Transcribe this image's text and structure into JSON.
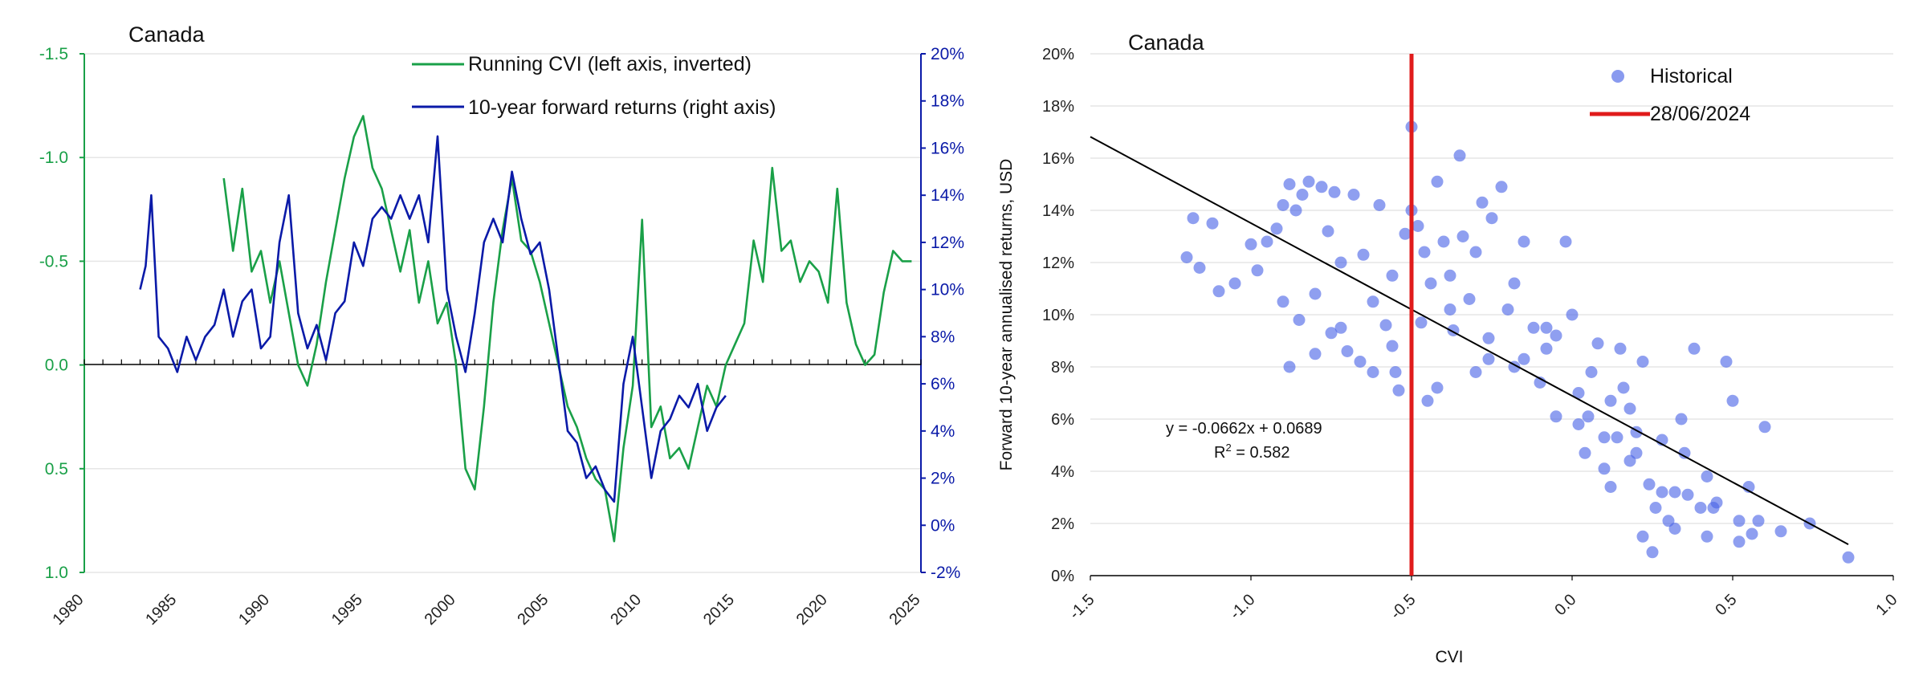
{
  "colors": {
    "cvi": "#1aa048",
    "returns": "#0a1aa8",
    "scatter": "#4a64e6",
    "marker": "#e01b1b",
    "trend": "#000000",
    "grid": "#e6e6e6"
  },
  "chart_data": [
    {
      "type": "line",
      "title": "Canada",
      "xlabel": "",
      "xlim": [
        1980,
        2025
      ],
      "x_ticks": [
        1980,
        1985,
        1990,
        1995,
        2000,
        2005,
        2010,
        2015,
        2020,
        2025
      ],
      "y_left": {
        "label": "",
        "inverted": true,
        "ylim": [
          -1.5,
          1.0
        ],
        "tick_values": [
          -1.5,
          -1.0,
          -0.5,
          0.0,
          0.5,
          1.0
        ],
        "tick_labels": [
          "-1.5",
          "-1.0",
          "-0.5",
          "0.0",
          "0.5",
          "1.0"
        ]
      },
      "y_right": {
        "label": "",
        "ylim": [
          -0.02,
          0.2
        ],
        "tick_values": [
          -0.02,
          0.0,
          0.02,
          0.04,
          0.06,
          0.08,
          0.1,
          0.12,
          0.14,
          0.16,
          0.18,
          0.2
        ],
        "tick_labels": [
          "-2%",
          "0%",
          "2%",
          "4%",
          "6%",
          "8%",
          "10%",
          "12%",
          "14%",
          "16%",
          "18%",
          "20%"
        ]
      },
      "series": [
        {
          "name": "Running CVI (left axis, inverted)",
          "axis": "left",
          "points": [
            [
              1987.5,
              -0.9
            ],
            [
              1988.0,
              -0.55
            ],
            [
              1988.5,
              -0.85
            ],
            [
              1989.0,
              -0.45
            ],
            [
              1989.5,
              -0.55
            ],
            [
              1990.0,
              -0.3
            ],
            [
              1990.5,
              -0.5
            ],
            [
              1991.0,
              -0.25
            ],
            [
              1991.5,
              0.0
            ],
            [
              1992.0,
              0.1
            ],
            [
              1992.5,
              -0.1
            ],
            [
              1993.0,
              -0.4
            ],
            [
              1993.5,
              -0.65
            ],
            [
              1994.0,
              -0.9
            ],
            [
              1994.5,
              -1.1
            ],
            [
              1995.0,
              -1.2
            ],
            [
              1995.5,
              -0.95
            ],
            [
              1996.0,
              -0.85
            ],
            [
              1996.5,
              -0.65
            ],
            [
              1997.0,
              -0.45
            ],
            [
              1997.5,
              -0.65
            ],
            [
              1998.0,
              -0.3
            ],
            [
              1998.5,
              -0.5
            ],
            [
              1999.0,
              -0.2
            ],
            [
              1999.5,
              -0.3
            ],
            [
              2000.0,
              0.0
            ],
            [
              2000.5,
              0.5
            ],
            [
              2001.0,
              0.6
            ],
            [
              2001.5,
              0.2
            ],
            [
              2002.0,
              -0.3
            ],
            [
              2002.5,
              -0.65
            ],
            [
              2003.0,
              -0.9
            ],
            [
              2003.5,
              -0.6
            ],
            [
              2004.0,
              -0.55
            ],
            [
              2004.5,
              -0.4
            ],
            [
              2005.0,
              -0.2
            ],
            [
              2005.5,
              0.0
            ],
            [
              2006.0,
              0.2
            ],
            [
              2006.5,
              0.3
            ],
            [
              2007.0,
              0.45
            ],
            [
              2007.5,
              0.55
            ],
            [
              2008.0,
              0.6
            ],
            [
              2008.5,
              0.85
            ],
            [
              2009.0,
              0.4
            ],
            [
              2009.5,
              0.1
            ],
            [
              2010.0,
              -0.7
            ],
            [
              2010.5,
              0.3
            ],
            [
              2011.0,
              0.2
            ],
            [
              2011.5,
              0.45
            ],
            [
              2012.0,
              0.4
            ],
            [
              2012.5,
              0.5
            ],
            [
              2013.0,
              0.3
            ],
            [
              2013.5,
              0.1
            ],
            [
              2014.0,
              0.2
            ],
            [
              2014.5,
              0.0
            ],
            [
              2015.0,
              -0.1
            ],
            [
              2015.5,
              -0.2
            ],
            [
              2016.0,
              -0.6
            ],
            [
              2016.5,
              -0.4
            ],
            [
              2017.0,
              -0.95
            ],
            [
              2017.5,
              -0.55
            ],
            [
              2018.0,
              -0.6
            ],
            [
              2018.5,
              -0.4
            ],
            [
              2019.0,
              -0.5
            ],
            [
              2019.5,
              -0.45
            ],
            [
              2020.0,
              -0.3
            ],
            [
              2020.5,
              -0.85
            ],
            [
              2021.0,
              -0.3
            ],
            [
              2021.5,
              -0.1
            ],
            [
              2022.0,
              0.0
            ],
            [
              2022.5,
              -0.05
            ],
            [
              2023.0,
              -0.35
            ],
            [
              2023.5,
              -0.55
            ],
            [
              2024.0,
              -0.5
            ],
            [
              2024.5,
              -0.5
            ]
          ]
        },
        {
          "name": "10-year forward returns (right axis)",
          "axis": "right",
          "points": [
            [
              1983.0,
              0.1
            ],
            [
              1983.3,
              0.11
            ],
            [
              1983.6,
              0.14
            ],
            [
              1984.0,
              0.08
            ],
            [
              1984.5,
              0.075
            ],
            [
              1985.0,
              0.065
            ],
            [
              1985.5,
              0.08
            ],
            [
              1986.0,
              0.07
            ],
            [
              1986.5,
              0.08
            ],
            [
              1987.0,
              0.085
            ],
            [
              1987.5,
              0.1
            ],
            [
              1988.0,
              0.08
            ],
            [
              1988.5,
              0.095
            ],
            [
              1989.0,
              0.1
            ],
            [
              1989.5,
              0.075
            ],
            [
              1990.0,
              0.08
            ],
            [
              1990.5,
              0.12
            ],
            [
              1991.0,
              0.14
            ],
            [
              1991.5,
              0.09
            ],
            [
              1992.0,
              0.075
            ],
            [
              1992.5,
              0.085
            ],
            [
              1993.0,
              0.07
            ],
            [
              1993.5,
              0.09
            ],
            [
              1994.0,
              0.095
            ],
            [
              1994.5,
              0.12
            ],
            [
              1995.0,
              0.11
            ],
            [
              1995.5,
              0.13
            ],
            [
              1996.0,
              0.135
            ],
            [
              1996.5,
              0.13
            ],
            [
              1997.0,
              0.14
            ],
            [
              1997.5,
              0.13
            ],
            [
              1998.0,
              0.14
            ],
            [
              1998.5,
              0.12
            ],
            [
              1999.0,
              0.165
            ],
            [
              1999.5,
              0.1
            ],
            [
              2000.0,
              0.08
            ],
            [
              2000.5,
              0.065
            ],
            [
              2001.0,
              0.09
            ],
            [
              2001.5,
              0.12
            ],
            [
              2002.0,
              0.13
            ],
            [
              2002.5,
              0.12
            ],
            [
              2003.0,
              0.15
            ],
            [
              2003.5,
              0.13
            ],
            [
              2004.0,
              0.115
            ],
            [
              2004.5,
              0.12
            ],
            [
              2005.0,
              0.1
            ],
            [
              2005.5,
              0.07
            ],
            [
              2006.0,
              0.04
            ],
            [
              2006.5,
              0.035
            ],
            [
              2007.0,
              0.02
            ],
            [
              2007.5,
              0.025
            ],
            [
              2008.0,
              0.015
            ],
            [
              2008.5,
              0.01
            ],
            [
              2009.0,
              0.06
            ],
            [
              2009.5,
              0.08
            ],
            [
              2010.0,
              0.05
            ],
            [
              2010.5,
              0.02
            ],
            [
              2011.0,
              0.04
            ],
            [
              2011.5,
              0.045
            ],
            [
              2012.0,
              0.055
            ],
            [
              2012.5,
              0.05
            ],
            [
              2013.0,
              0.06
            ],
            [
              2013.5,
              0.04
            ],
            [
              2014.0,
              0.05
            ],
            [
              2014.5,
              0.055
            ]
          ]
        }
      ]
    },
    {
      "type": "scatter",
      "title": "Canada",
      "xlabel": "CVI",
      "ylabel": "Forward 10-year annualised returns, USD",
      "xlim": [
        -1.5,
        1.0
      ],
      "ylim": [
        0.0,
        0.2
      ],
      "x_ticks": [
        -1.5,
        -1.0,
        -0.5,
        0.0,
        0.5,
        1.0
      ],
      "x_tick_labels": [
        "-1.5",
        "-1.0",
        "-0.5",
        "0.0",
        "0.5",
        "1.0"
      ],
      "y_ticks": [
        0.0,
        0.02,
        0.04,
        0.06,
        0.08,
        0.1,
        0.12,
        0.14,
        0.16,
        0.18,
        0.2
      ],
      "y_tick_labels": [
        "0%",
        "2%",
        "4%",
        "6%",
        "8%",
        "10%",
        "12%",
        "14%",
        "16%",
        "18%",
        "20%"
      ],
      "legend": [
        "Historical",
        "28/06/2024"
      ],
      "current_cvi": -0.5,
      "trendline": {
        "slope": -0.0662,
        "intercept": 0.0689,
        "x_range": [
          -1.5,
          0.86
        ],
        "equation": "y = -0.0662x + 0.0689",
        "r2_prefix": "R",
        "r2_sup": "2",
        "r2_suffix": " = 0.582"
      },
      "points": [
        [
          -1.2,
          0.122
        ],
        [
          -1.18,
          0.137
        ],
        [
          -1.16,
          0.118
        ],
        [
          -1.12,
          0.135
        ],
        [
          -1.1,
          0.109
        ],
        [
          -1.05,
          0.112
        ],
        [
          -1.0,
          0.127
        ],
        [
          -0.98,
          0.117
        ],
        [
          -0.95,
          0.128
        ],
        [
          -0.92,
          0.133
        ],
        [
          -0.9,
          0.142
        ],
        [
          -0.9,
          0.105
        ],
        [
          -0.88,
          0.15
        ],
        [
          -0.86,
          0.14
        ],
        [
          -0.85,
          0.098
        ],
        [
          -0.84,
          0.146
        ],
        [
          -0.82,
          0.151
        ],
        [
          -0.8,
          0.108
        ],
        [
          -0.8,
          0.085
        ],
        [
          -0.78,
          0.149
        ],
        [
          -0.76,
          0.132
        ],
        [
          -0.75,
          0.093
        ],
        [
          -0.74,
          0.147
        ],
        [
          -0.72,
          0.12
        ],
        [
          -0.7,
          0.086
        ],
        [
          -0.68,
          0.146
        ],
        [
          -0.66,
          0.082
        ],
        [
          -0.65,
          0.123
        ],
        [
          -0.62,
          0.105
        ],
        [
          -0.6,
          0.142
        ],
        [
          -0.58,
          0.096
        ],
        [
          -0.56,
          0.088
        ],
        [
          -0.55,
          0.078
        ],
        [
          -0.54,
          0.071
        ],
        [
          -0.52,
          0.131
        ],
        [
          -0.5,
          0.172
        ],
        [
          -0.5,
          0.14
        ],
        [
          -0.48,
          0.134
        ],
        [
          -0.47,
          0.097
        ],
        [
          -0.45,
          0.067
        ],
        [
          -0.44,
          0.112
        ],
        [
          -0.42,
          0.151
        ],
        [
          -0.4,
          0.128
        ],
        [
          -0.38,
          0.115
        ],
        [
          -0.37,
          0.094
        ],
        [
          -0.35,
          0.161
        ],
        [
          -0.34,
          0.13
        ],
        [
          -0.32,
          0.106
        ],
        [
          -0.3,
          0.124
        ],
        [
          -0.28,
          0.143
        ],
        [
          -0.26,
          0.083
        ],
        [
          -0.25,
          0.137
        ],
        [
          -0.22,
          0.149
        ],
        [
          -0.2,
          0.102
        ],
        [
          -0.18,
          0.08
        ],
        [
          -0.15,
          0.128
        ],
        [
          -0.12,
          0.095
        ],
        [
          -0.1,
          0.074
        ],
        [
          -0.08,
          0.087
        ],
        [
          -0.05,
          0.061
        ],
        [
          -0.02,
          0.128
        ],
        [
          0.0,
          0.1
        ],
        [
          0.02,
          0.058
        ],
        [
          0.04,
          0.047
        ],
        [
          0.06,
          0.078
        ],
        [
          0.08,
          0.089
        ],
        [
          0.1,
          0.041
        ],
        [
          0.12,
          0.067
        ],
        [
          0.14,
          0.053
        ],
        [
          0.16,
          0.072
        ],
        [
          0.18,
          0.044
        ],
        [
          0.2,
          0.055
        ],
        [
          0.22,
          0.082
        ],
        [
          0.24,
          0.035
        ],
        [
          0.25,
          0.009
        ],
        [
          0.26,
          0.026
        ],
        [
          0.28,
          0.032
        ],
        [
          0.3,
          0.021
        ],
        [
          0.32,
          0.018
        ],
        [
          0.34,
          0.06
        ],
        [
          0.36,
          0.031
        ],
        [
          0.38,
          0.087
        ],
        [
          0.4,
          0.026
        ],
        [
          0.42,
          0.015
        ],
        [
          0.45,
          0.028
        ],
        [
          0.48,
          0.082
        ],
        [
          0.5,
          0.067
        ],
        [
          0.52,
          0.013
        ],
        [
          0.55,
          0.034
        ],
        [
          0.58,
          0.021
        ],
        [
          0.6,
          0.057
        ],
        [
          0.65,
          0.017
        ],
        [
          0.74,
          0.02
        ],
        [
          0.86,
          0.007
        ],
        [
          -0.62,
          0.078
        ],
        [
          -0.42,
          0.072
        ],
        [
          -0.3,
          0.078
        ],
        [
          -0.15,
          0.083
        ],
        [
          -0.05,
          0.092
        ],
        [
          0.02,
          0.07
        ],
        [
          0.12,
          0.034
        ],
        [
          0.15,
          0.087
        ],
        [
          0.18,
          0.064
        ],
        [
          0.22,
          0.015
        ],
        [
          0.28,
          0.052
        ],
        [
          0.35,
          0.047
        ],
        [
          0.42,
          0.038
        ],
        [
          0.52,
          0.021
        ],
        [
          -0.88,
          0.08
        ],
        [
          -0.72,
          0.095
        ],
        [
          -0.56,
          0.115
        ],
        [
          -0.46,
          0.124
        ],
        [
          -0.38,
          0.102
        ],
        [
          -0.26,
          0.091
        ],
        [
          -0.18,
          0.112
        ],
        [
          -0.08,
          0.095
        ],
        [
          0.05,
          0.061
        ],
        [
          0.1,
          0.053
        ],
        [
          0.2,
          0.047
        ],
        [
          0.32,
          0.032
        ],
        [
          0.44,
          0.026
        ],
        [
          0.56,
          0.016
        ]
      ]
    }
  ]
}
